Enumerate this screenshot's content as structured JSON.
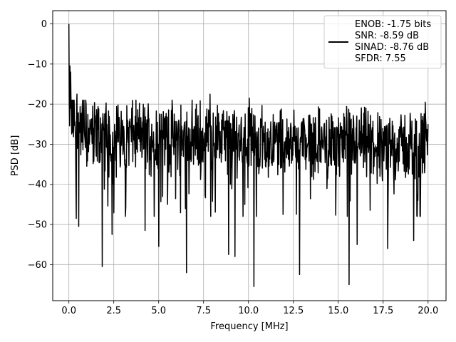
{
  "chart_data": {
    "type": "line",
    "title": "",
    "xlabel": "Frequency [MHz]",
    "ylabel": "PSD [dB]",
    "xlim": [
      -0.9,
      21.0
    ],
    "ylim": [
      -69,
      3.3
    ],
    "xticks": [
      0.0,
      2.5,
      5.0,
      7.5,
      10.0,
      12.5,
      15.0,
      17.5,
      20.0
    ],
    "xtick_labels": [
      "0.0",
      "2.5",
      "5.0",
      "7.5",
      "10.0",
      "12.5",
      "15.0",
      "17.5",
      "20.0"
    ],
    "yticks": [
      0,
      -10,
      -20,
      -30,
      -40,
      -50,
      -60
    ],
    "ytick_labels": [
      "0",
      "−10",
      "−20",
      "−30",
      "−40",
      "−50",
      "−60"
    ],
    "grid": true,
    "legend_position": "top-right",
    "line_color": "#000000",
    "series": [
      {
        "legend_lines": [
          "ENOB: -1.75 bits",
          "SNR: -8.59 dB",
          "SINAD: -8.76 dB",
          "SFDR: 7.55"
        ],
        "x_start": 0.0,
        "x_end": 20.0,
        "num_points": 1024,
        "peaks": [
          {
            "x": 0.0,
            "y": 0.0
          },
          {
            "x": 0.05,
            "y": -10.5
          },
          {
            "x": 0.1,
            "y": -12.0
          },
          {
            "x": 0.45,
            "y": -17.5
          },
          {
            "x": 7.85,
            "y": -17.5
          },
          {
            "x": 10.05,
            "y": -18.5
          },
          {
            "x": 19.85,
            "y": -19.5
          }
        ],
        "dips": [
          {
            "x": 0.42,
            "y": -48.5
          },
          {
            "x": 0.55,
            "y": -50.5
          },
          {
            "x": 1.85,
            "y": -60.5
          },
          {
            "x": 2.4,
            "y": -52.5
          },
          {
            "x": 3.15,
            "y": -48.0
          },
          {
            "x": 4.25,
            "y": -51.5
          },
          {
            "x": 5.0,
            "y": -55.5
          },
          {
            "x": 5.5,
            "y": -45.0
          },
          {
            "x": 6.55,
            "y": -62.0
          },
          {
            "x": 8.9,
            "y": -57.5
          },
          {
            "x": 9.25,
            "y": -58.0
          },
          {
            "x": 10.3,
            "y": -65.5
          },
          {
            "x": 12.85,
            "y": -62.5
          },
          {
            "x": 15.6,
            "y": -65.0
          },
          {
            "x": 16.05,
            "y": -55.0
          },
          {
            "x": 17.75,
            "y": -56.0
          },
          {
            "x": 19.2,
            "y": -54.0
          }
        ],
        "typical_upper": -25,
        "typical_lower": -40
      }
    ]
  }
}
